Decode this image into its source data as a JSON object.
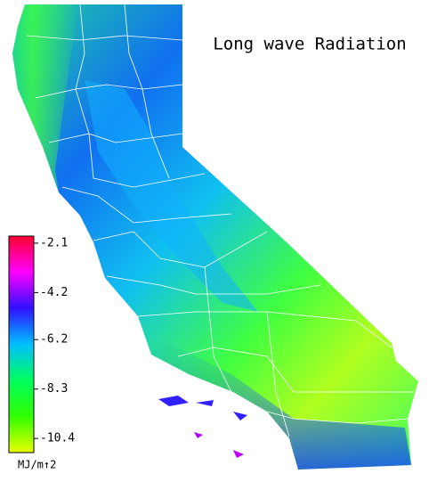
{
  "title": "Long wave Radiation",
  "colorbar": {
    "ticks": [
      -2.1,
      -4.2,
      -6.2,
      -8.3,
      -10.4
    ],
    "lim": [
      -1.8,
      -11.0
    ],
    "colors": [
      "#ff0030",
      "#ff00ff",
      "#3010ff",
      "#00c0ff",
      "#00ff60",
      "#30ff00",
      "#e8ff00"
    ],
    "unit": "MJ/m↑2"
  }
}
